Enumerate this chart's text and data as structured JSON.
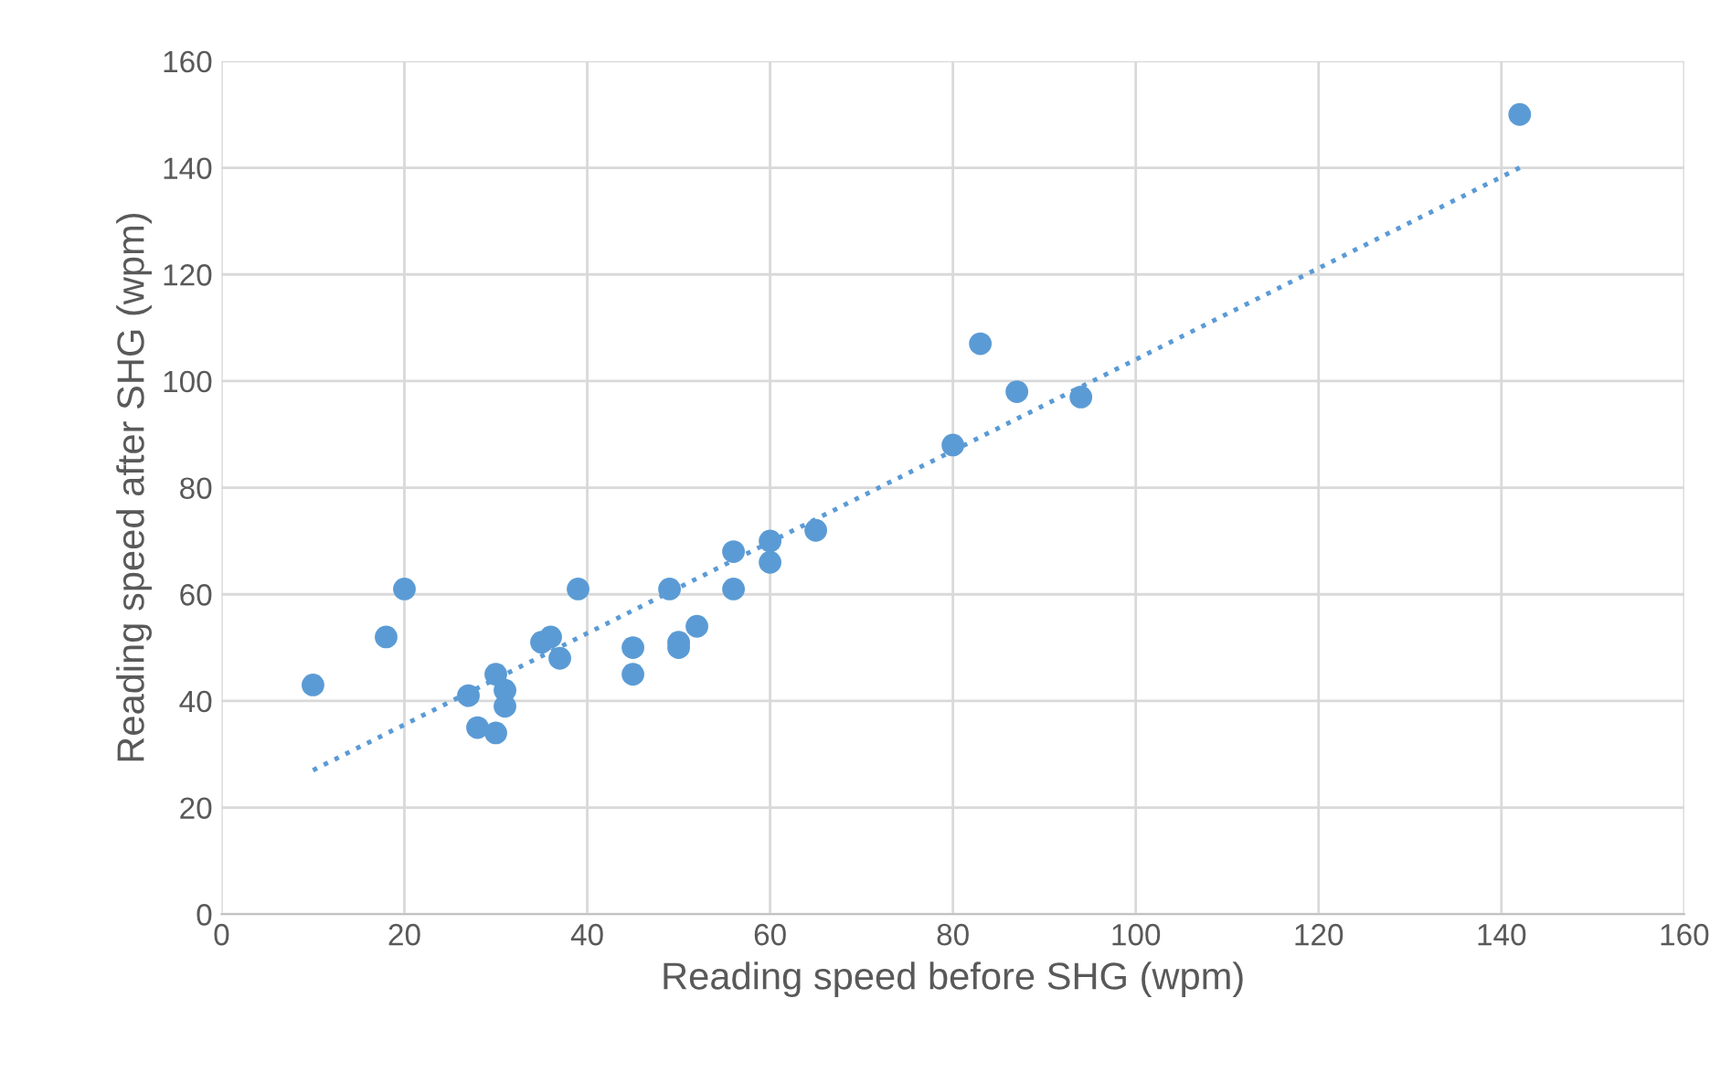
{
  "chart_data": {
    "type": "scatter",
    "xlabel": "Reading speed before SHG (wpm)",
    "ylabel": "Reading speed after SHG (wpm)",
    "xlim": [
      0,
      160
    ],
    "ylim": [
      0,
      160
    ],
    "xticks": [
      0,
      20,
      40,
      60,
      80,
      100,
      120,
      140,
      160
    ],
    "yticks": [
      0,
      20,
      40,
      60,
      80,
      100,
      120,
      140,
      160
    ],
    "grid": true,
    "series": [
      {
        "marker": "circle",
        "color": "#5b9bd5",
        "x": [
          10,
          18,
          20,
          27,
          28,
          30,
          30,
          31,
          31,
          35,
          36,
          37,
          39,
          45,
          45,
          49,
          50,
          50,
          52,
          56,
          56,
          60,
          60,
          65,
          80,
          83,
          87,
          94,
          142
        ],
        "values": [
          43,
          52,
          61,
          41,
          35,
          45,
          34,
          42,
          39,
          51,
          52,
          48,
          61,
          50,
          45,
          61,
          51,
          50,
          54,
          68,
          61,
          70,
          66,
          72,
          88,
          107,
          98,
          97,
          150
        ]
      },
      {
        "type": "line",
        "marker": "none",
        "color": "#5b9bd5",
        "line_style": "dotted",
        "x": [
          10,
          142
        ],
        "values": [
          27,
          140
        ]
      }
    ]
  }
}
